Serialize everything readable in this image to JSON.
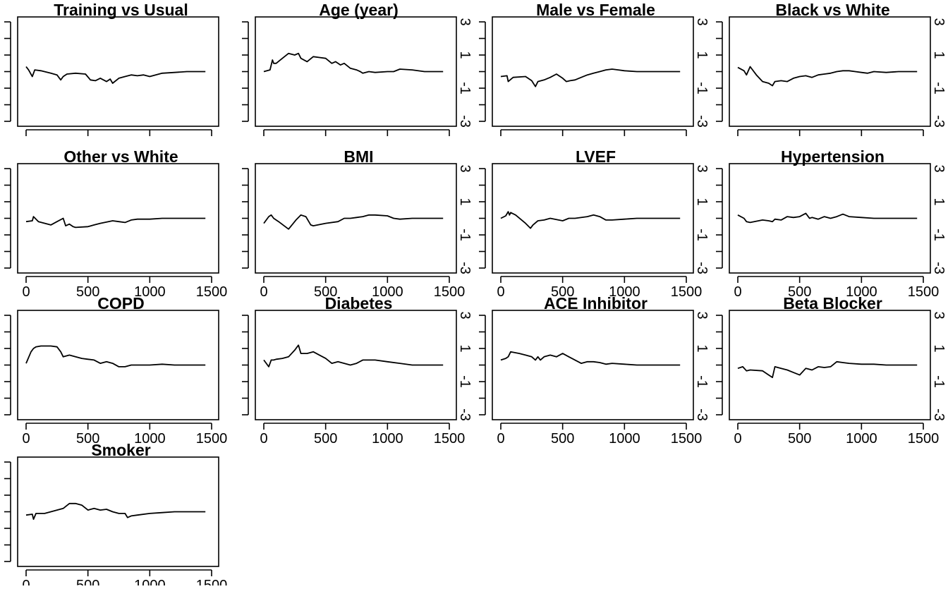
{
  "chart_data": [
    {
      "type": "line",
      "title": "Training vs Usual",
      "xlim": [
        0,
        1500
      ],
      "ylim": [
        -3,
        3
      ],
      "x_ticks": [
        0,
        500,
        1000,
        1500
      ],
      "y_ticks": [
        -3,
        -1,
        1,
        3
      ],
      "x_tick_labels": [],
      "y_tick_labels": [],
      "series": [
        {
          "x": [
            0,
            20,
            50,
            70,
            120,
            200,
            250,
            280,
            300,
            330,
            400,
            480,
            520,
            560,
            600,
            650,
            680,
            700,
            750,
            800,
            850,
            900,
            950,
            1000,
            1100,
            1200,
            1300,
            1450
          ],
          "y": [
            0.3,
            0.1,
            -0.3,
            0.1,
            0.05,
            -0.1,
            -0.2,
            -0.5,
            -0.3,
            -0.15,
            -0.1,
            -0.15,
            -0.5,
            -0.55,
            -0.4,
            -0.6,
            -0.45,
            -0.7,
            -0.4,
            -0.3,
            -0.2,
            -0.25,
            -0.2,
            -0.3,
            -0.1,
            -0.05,
            0.0,
            0.0
          ]
        }
      ]
    },
    {
      "type": "line",
      "title": "Age (year)",
      "xlim": [
        0,
        1500
      ],
      "ylim": [
        -3,
        3
      ],
      "x_ticks": [
        0,
        500,
        1000,
        1500
      ],
      "y_ticks": [
        -3,
        -1,
        1,
        3
      ],
      "x_tick_labels": [],
      "y_tick_labels": [
        "3",
        "1",
        "-1",
        "-3"
      ],
      "series": [
        {
          "x": [
            0,
            50,
            70,
            80,
            100,
            150,
            200,
            250,
            280,
            300,
            350,
            400,
            450,
            500,
            550,
            580,
            620,
            650,
            700,
            750,
            780,
            800,
            850,
            900,
            1000,
            1050,
            1100,
            1200,
            1300,
            1450
          ],
          "y": [
            0.0,
            0.1,
            0.7,
            0.5,
            0.5,
            0.8,
            1.1,
            1.0,
            1.1,
            0.8,
            0.6,
            0.9,
            0.85,
            0.8,
            0.5,
            0.6,
            0.4,
            0.5,
            0.2,
            0.1,
            0.0,
            -0.1,
            0.0,
            -0.05,
            0.0,
            0.0,
            0.15,
            0.1,
            0.0,
            0.0
          ]
        }
      ]
    },
    {
      "type": "line",
      "title": "Male vs Female",
      "xlim": [
        0,
        1500
      ],
      "ylim": [
        -3,
        3
      ],
      "x_ticks": [
        0,
        500,
        1000,
        1500
      ],
      "y_ticks": [
        -3,
        -1,
        1,
        3
      ],
      "x_tick_labels": [],
      "y_tick_labels": [
        "3",
        "1",
        "-1",
        "-3"
      ],
      "series": [
        {
          "x": [
            0,
            50,
            60,
            100,
            200,
            250,
            280,
            300,
            350,
            400,
            450,
            500,
            530,
            560,
            600,
            650,
            700,
            750,
            800,
            850,
            900,
            950,
            1000,
            1100,
            1200,
            1300,
            1450
          ],
          "y": [
            -0.3,
            -0.25,
            -0.6,
            -0.35,
            -0.3,
            -0.55,
            -0.9,
            -0.6,
            -0.5,
            -0.35,
            -0.15,
            -0.4,
            -0.6,
            -0.55,
            -0.5,
            -0.35,
            -0.2,
            -0.1,
            0.0,
            0.1,
            0.15,
            0.1,
            0.05,
            0.0,
            0.0,
            0.0,
            0.0
          ]
        }
      ]
    },
    {
      "type": "line",
      "title": "Black vs White",
      "xlim": [
        0,
        1500
      ],
      "ylim": [
        -3,
        3
      ],
      "x_ticks": [
        0,
        500,
        1000,
        1500
      ],
      "y_ticks": [
        -3,
        -1,
        1,
        3
      ],
      "x_tick_labels": [],
      "y_tick_labels": [
        "3",
        "1",
        "-1",
        "-3"
      ],
      "series": [
        {
          "x": [
            0,
            50,
            70,
            100,
            150,
            200,
            250,
            280,
            300,
            350,
            400,
            450,
            500,
            550,
            600,
            650,
            700,
            750,
            800,
            850,
            900,
            950,
            1000,
            1050,
            1100,
            1200,
            1300,
            1450
          ],
          "y": [
            0.25,
            0.05,
            -0.2,
            0.3,
            -0.2,
            -0.6,
            -0.7,
            -0.85,
            -0.6,
            -0.55,
            -0.6,
            -0.4,
            -0.3,
            -0.25,
            -0.35,
            -0.2,
            -0.15,
            -0.1,
            0.0,
            0.05,
            0.05,
            0.0,
            -0.05,
            -0.1,
            0.0,
            -0.05,
            0.0,
            0.0
          ]
        }
      ]
    },
    {
      "type": "line",
      "title": "Other vs White",
      "xlim": [
        0,
        1500
      ],
      "ylim": [
        -3,
        3
      ],
      "x_ticks": [
        0,
        500,
        1000,
        1500
      ],
      "y_ticks": [
        -3,
        -1,
        1,
        3
      ],
      "x_tick_labels": [
        "0",
        "500",
        "1000",
        "1500"
      ],
      "y_tick_labels": [],
      "series": [
        {
          "x": [
            0,
            50,
            60,
            100,
            200,
            250,
            300,
            320,
            350,
            380,
            400,
            500,
            550,
            600,
            700,
            750,
            800,
            850,
            900,
            1000,
            1100,
            1200,
            1300,
            1450
          ],
          "y": [
            -0.2,
            -0.15,
            0.1,
            -0.2,
            -0.4,
            -0.2,
            0.0,
            -0.45,
            -0.35,
            -0.5,
            -0.55,
            -0.5,
            -0.4,
            -0.3,
            -0.15,
            -0.2,
            -0.25,
            -0.1,
            -0.05,
            -0.05,
            0.0,
            0.0,
            0.0,
            0.0
          ]
        }
      ]
    },
    {
      "type": "line",
      "title": "BMI",
      "xlim": [
        0,
        1500
      ],
      "ylim": [
        -3,
        3
      ],
      "x_ticks": [
        0,
        500,
        1000,
        1500
      ],
      "y_ticks": [
        -3,
        -1,
        1,
        3
      ],
      "x_tick_labels": [
        "0",
        "500",
        "1000",
        "1500"
      ],
      "y_tick_labels": [
        "3",
        "1",
        "-1",
        "-3"
      ],
      "series": [
        {
          "x": [
            0,
            40,
            60,
            80,
            120,
            200,
            260,
            300,
            340,
            380,
            400,
            500,
            600,
            650,
            700,
            750,
            800,
            850,
            900,
            1000,
            1050,
            1100,
            1200,
            1300,
            1450
          ],
          "y": [
            -0.3,
            0.1,
            0.2,
            0.0,
            -0.2,
            -0.65,
            -0.1,
            0.2,
            0.1,
            -0.4,
            -0.45,
            -0.3,
            -0.2,
            0.0,
            0.0,
            0.05,
            0.1,
            0.2,
            0.2,
            0.15,
            0.0,
            -0.05,
            0.0,
            0.0,
            0.0
          ]
        }
      ]
    },
    {
      "type": "line",
      "title": "LVEF",
      "xlim": [
        0,
        1500
      ],
      "ylim": [
        -3,
        3
      ],
      "x_ticks": [
        0,
        500,
        1000,
        1500
      ],
      "y_ticks": [
        -3,
        -1,
        1,
        3
      ],
      "x_tick_labels": [
        "0",
        "500",
        "1000",
        "1500"
      ],
      "y_tick_labels": [
        "3",
        "1",
        "-1",
        "-3"
      ],
      "series": [
        {
          "x": [
            0,
            40,
            60,
            70,
            80,
            120,
            200,
            240,
            260,
            300,
            350,
            400,
            500,
            550,
            600,
            700,
            750,
            800,
            850,
            900,
            1000,
            1100,
            1200,
            1300,
            1450
          ],
          "y": [
            0.0,
            0.15,
            0.4,
            0.2,
            0.35,
            0.2,
            -0.3,
            -0.6,
            -0.4,
            -0.15,
            -0.1,
            0.0,
            -0.15,
            0.0,
            0.0,
            0.1,
            0.2,
            0.1,
            -0.1,
            -0.1,
            -0.05,
            0.0,
            0.0,
            0.0,
            0.0
          ]
        }
      ]
    },
    {
      "type": "line",
      "title": "Hypertension",
      "xlim": [
        0,
        1500
      ],
      "ylim": [
        -3,
        3
      ],
      "x_ticks": [
        0,
        500,
        1000,
        1500
      ],
      "y_ticks": [
        -3,
        -1,
        1,
        3
      ],
      "x_tick_labels": [
        "0",
        "500",
        "1000",
        "1500"
      ],
      "y_tick_labels": [
        "3",
        "1",
        "-1",
        "-3"
      ],
      "series": [
        {
          "x": [
            0,
            50,
            70,
            100,
            200,
            250,
            280,
            300,
            350,
            400,
            450,
            500,
            550,
            580,
            600,
            650,
            700,
            750,
            800,
            850,
            900,
            1000,
            1100,
            1200,
            1300,
            1450
          ],
          "y": [
            0.2,
            0.0,
            -0.2,
            -0.25,
            -0.1,
            -0.15,
            -0.2,
            -0.05,
            -0.1,
            0.1,
            0.05,
            0.1,
            0.3,
            0.0,
            0.05,
            -0.05,
            0.1,
            0.0,
            0.1,
            0.25,
            0.1,
            0.05,
            0.0,
            0.0,
            0.0,
            0.0
          ]
        }
      ]
    },
    {
      "type": "line",
      "title": "COPD",
      "xlim": [
        0,
        1500
      ],
      "ylim": [
        -3,
        3
      ],
      "x_ticks": [
        0,
        500,
        1000,
        1500
      ],
      "y_ticks": [
        -3,
        -1,
        1,
        3
      ],
      "x_tick_labels": [
        "0",
        "500",
        "1000",
        "1500"
      ],
      "y_tick_labels": [],
      "series": [
        {
          "x": [
            0,
            40,
            60,
            80,
            120,
            200,
            250,
            280,
            300,
            350,
            400,
            450,
            500,
            550,
            600,
            650,
            700,
            750,
            800,
            850,
            900,
            1000,
            1100,
            1200,
            1300,
            1450
          ],
          "y": [
            0.1,
            0.8,
            1.0,
            1.1,
            1.15,
            1.15,
            1.1,
            0.8,
            0.5,
            0.6,
            0.5,
            0.4,
            0.35,
            0.3,
            0.1,
            0.2,
            0.1,
            -0.1,
            -0.1,
            0.0,
            0.0,
            0.0,
            0.05,
            0.0,
            0.0,
            0.0
          ]
        }
      ]
    },
    {
      "type": "line",
      "title": "Diabetes",
      "xlim": [
        0,
        1500
      ],
      "ylim": [
        -3,
        3
      ],
      "x_ticks": [
        0,
        500,
        1000,
        1500
      ],
      "y_ticks": [
        -3,
        -1,
        1,
        3
      ],
      "x_tick_labels": [
        "0",
        "500",
        "1000",
        "1500"
      ],
      "y_tick_labels": [
        "3",
        "1",
        "-1",
        "-3"
      ],
      "series": [
        {
          "x": [
            0,
            40,
            60,
            80,
            100,
            150,
            200,
            250,
            280,
            300,
            350,
            400,
            450,
            500,
            550,
            600,
            700,
            750,
            800,
            900,
            1000,
            1100,
            1200,
            1300,
            1450
          ],
          "y": [
            0.3,
            -0.1,
            0.3,
            0.3,
            0.35,
            0.4,
            0.5,
            0.9,
            1.2,
            0.7,
            0.7,
            0.8,
            0.6,
            0.4,
            0.1,
            0.2,
            0.0,
            0.1,
            0.3,
            0.3,
            0.2,
            0.1,
            0.0,
            0.0,
            0.0
          ]
        }
      ]
    },
    {
      "type": "line",
      "title": "ACE Inhibitor",
      "xlim": [
        0,
        1500
      ],
      "ylim": [
        -3,
        3
      ],
      "x_ticks": [
        0,
        500,
        1000,
        1500
      ],
      "y_ticks": [
        -3,
        -1,
        1,
        3
      ],
      "x_tick_labels": [
        "0",
        "500",
        "1000",
        "1500"
      ],
      "y_tick_labels": [
        "3",
        "1",
        "-1",
        "-3"
      ],
      "series": [
        {
          "x": [
            0,
            40,
            60,
            80,
            150,
            200,
            250,
            280,
            300,
            320,
            350,
            400,
            450,
            500,
            550,
            600,
            650,
            700,
            750,
            800,
            850,
            900,
            1000,
            1100,
            1200,
            1300,
            1450
          ],
          "y": [
            0.3,
            0.4,
            0.5,
            0.8,
            0.7,
            0.6,
            0.5,
            0.3,
            0.5,
            0.3,
            0.5,
            0.6,
            0.5,
            0.7,
            0.5,
            0.3,
            0.1,
            0.2,
            0.2,
            0.15,
            0.05,
            0.1,
            0.05,
            0.0,
            0.0,
            0.0,
            0.0
          ]
        }
      ]
    },
    {
      "type": "line",
      "title": "Beta Blocker",
      "xlim": [
        0,
        1500
      ],
      "ylim": [
        -3,
        3
      ],
      "x_ticks": [
        0,
        500,
        1000,
        1500
      ],
      "y_ticks": [
        -3,
        -1,
        1,
        3
      ],
      "x_tick_labels": [
        "0",
        "500",
        "1000",
        "1500"
      ],
      "y_tick_labels": [
        "3",
        "1",
        "-1",
        "-3"
      ],
      "series": [
        {
          "x": [
            0,
            40,
            70,
            100,
            200,
            250,
            280,
            300,
            350,
            400,
            450,
            500,
            550,
            600,
            650,
            700,
            750,
            800,
            850,
            900,
            1000,
            1050,
            1100,
            1200,
            1300,
            1450
          ],
          "y": [
            -0.2,
            -0.1,
            -0.35,
            -0.3,
            -0.35,
            -0.6,
            -0.75,
            -0.1,
            -0.2,
            -0.3,
            -0.45,
            -0.6,
            -0.2,
            -0.3,
            -0.1,
            -0.15,
            -0.1,
            0.2,
            0.15,
            0.1,
            0.05,
            0.05,
            0.05,
            0.0,
            0.0,
            0.0
          ]
        }
      ]
    },
    {
      "type": "line",
      "title": "Smoker",
      "xlim": [
        0,
        1500
      ],
      "ylim": [
        -3,
        3
      ],
      "x_ticks": [
        0,
        500,
        1000,
        1500
      ],
      "y_ticks": [
        -3,
        -1,
        1,
        3
      ],
      "x_tick_labels": [
        "0",
        "500",
        "1000",
        "1500"
      ],
      "y_tick_labels": [],
      "series": [
        {
          "x": [
            0,
            50,
            60,
            80,
            150,
            200,
            300,
            350,
            400,
            450,
            500,
            550,
            600,
            650,
            700,
            750,
            800,
            820,
            850,
            900,
            1000,
            1100,
            1200,
            1300,
            1450
          ],
          "y": [
            -0.2,
            -0.15,
            -0.45,
            -0.1,
            -0.1,
            0.0,
            0.2,
            0.5,
            0.5,
            0.4,
            0.1,
            0.2,
            0.1,
            0.15,
            0.0,
            -0.1,
            -0.1,
            -0.35,
            -0.25,
            -0.2,
            -0.1,
            -0.05,
            0.0,
            0.0,
            0.0
          ]
        }
      ]
    }
  ]
}
